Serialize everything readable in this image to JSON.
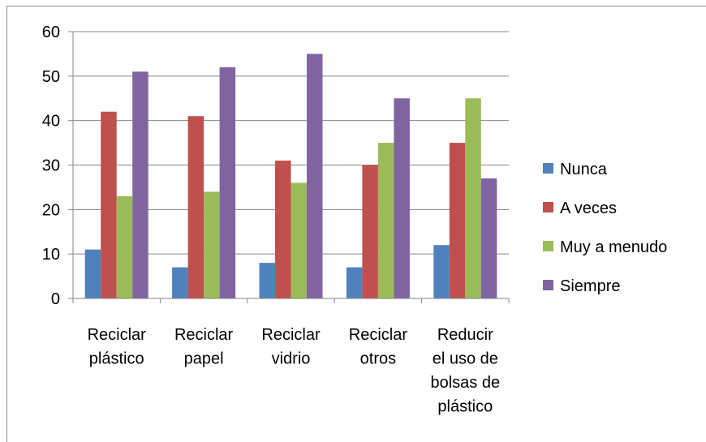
{
  "chart_data": {
    "type": "bar",
    "categories": [
      [
        "Reciclar",
        "plástico"
      ],
      [
        "Reciclar",
        "papel"
      ],
      [
        "Reciclar",
        "vidrio"
      ],
      [
        "Reciclar",
        "otros"
      ],
      [
        "Reducir",
        "el uso de",
        "bolsas de",
        "plástico"
      ]
    ],
    "series": [
      {
        "name": "Nunca",
        "color": "#4f81bd",
        "values": [
          11,
          7,
          8,
          7,
          12
        ]
      },
      {
        "name": "A veces",
        "color": "#c0504d",
        "values": [
          42,
          41,
          31,
          30,
          35
        ]
      },
      {
        "name": "Muy a menudo",
        "color": "#9bbb59",
        "values": [
          23,
          24,
          26,
          35,
          45
        ]
      },
      {
        "name": "Siempre",
        "color": "#8064a2",
        "values": [
          51,
          52,
          55,
          45,
          27
        ]
      }
    ],
    "ylim": [
      0,
      60
    ],
    "yticks": [
      0,
      10,
      20,
      30,
      40,
      50,
      60
    ],
    "grid": true,
    "legend_position": "right"
  }
}
